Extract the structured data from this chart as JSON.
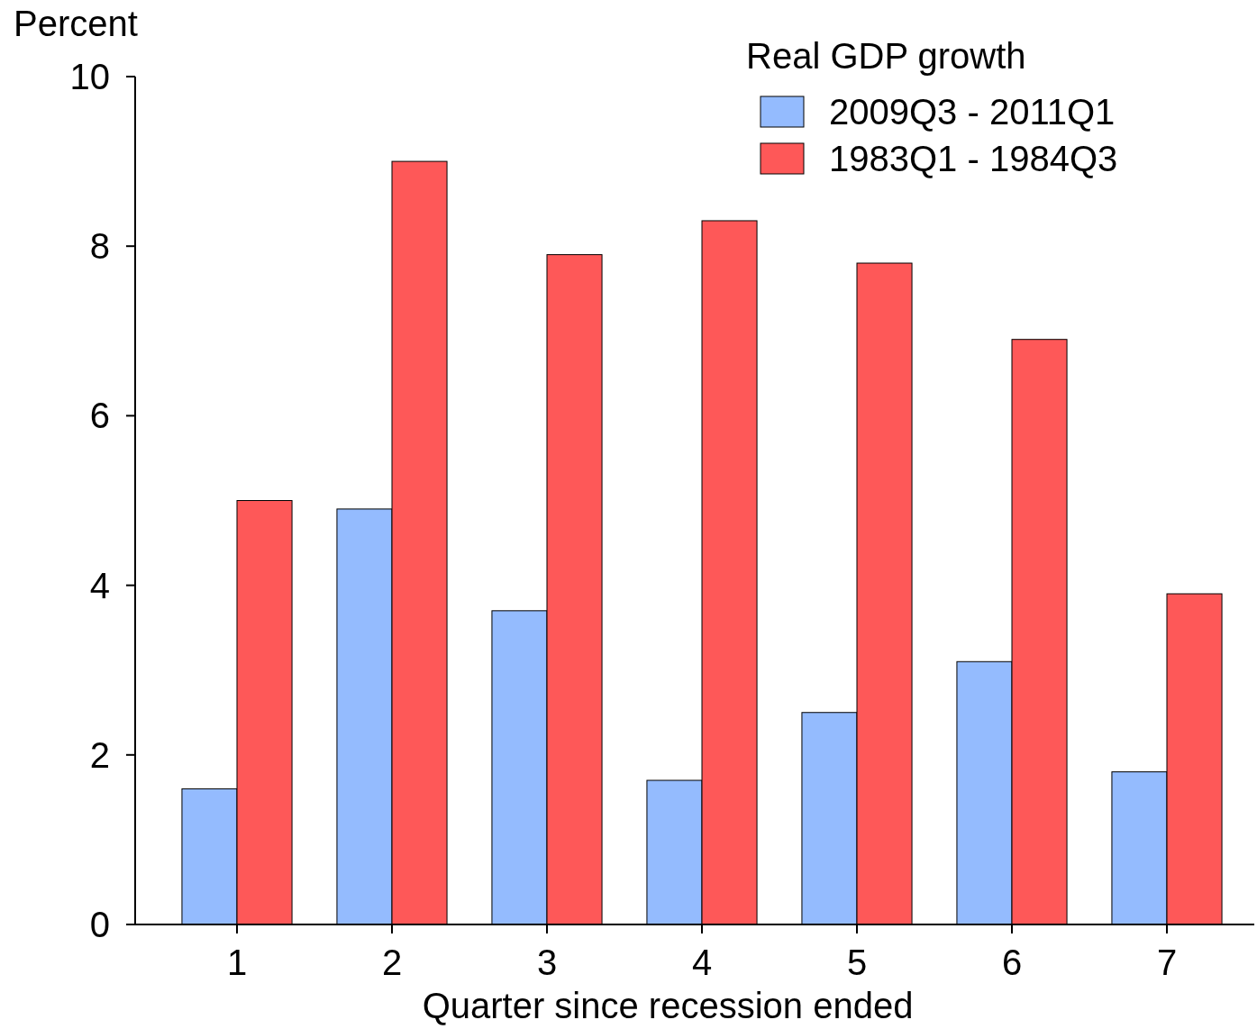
{
  "chart_data": {
    "type": "bar",
    "ylabel": "Percent",
    "xlabel": "Quarter since recession ended",
    "legend_title": "Real GDP growth",
    "categories": [
      "1",
      "2",
      "3",
      "4",
      "5",
      "6",
      "7"
    ],
    "series": [
      {
        "name": "2009Q3 - 2011Q1",
        "color": "#94bbfe",
        "values": [
          1.6,
          4.9,
          3.7,
          1.7,
          2.5,
          3.1,
          1.8
        ]
      },
      {
        "name": "1983Q1 - 1984Q3",
        "color": "#fe5858",
        "values": [
          5.0,
          9.0,
          7.9,
          8.3,
          7.8,
          6.9,
          3.9
        ]
      }
    ],
    "ylim": [
      0,
      10
    ],
    "yticks": [
      0,
      2,
      4,
      6,
      8,
      10
    ],
    "grid": false,
    "legend": "top right"
  }
}
